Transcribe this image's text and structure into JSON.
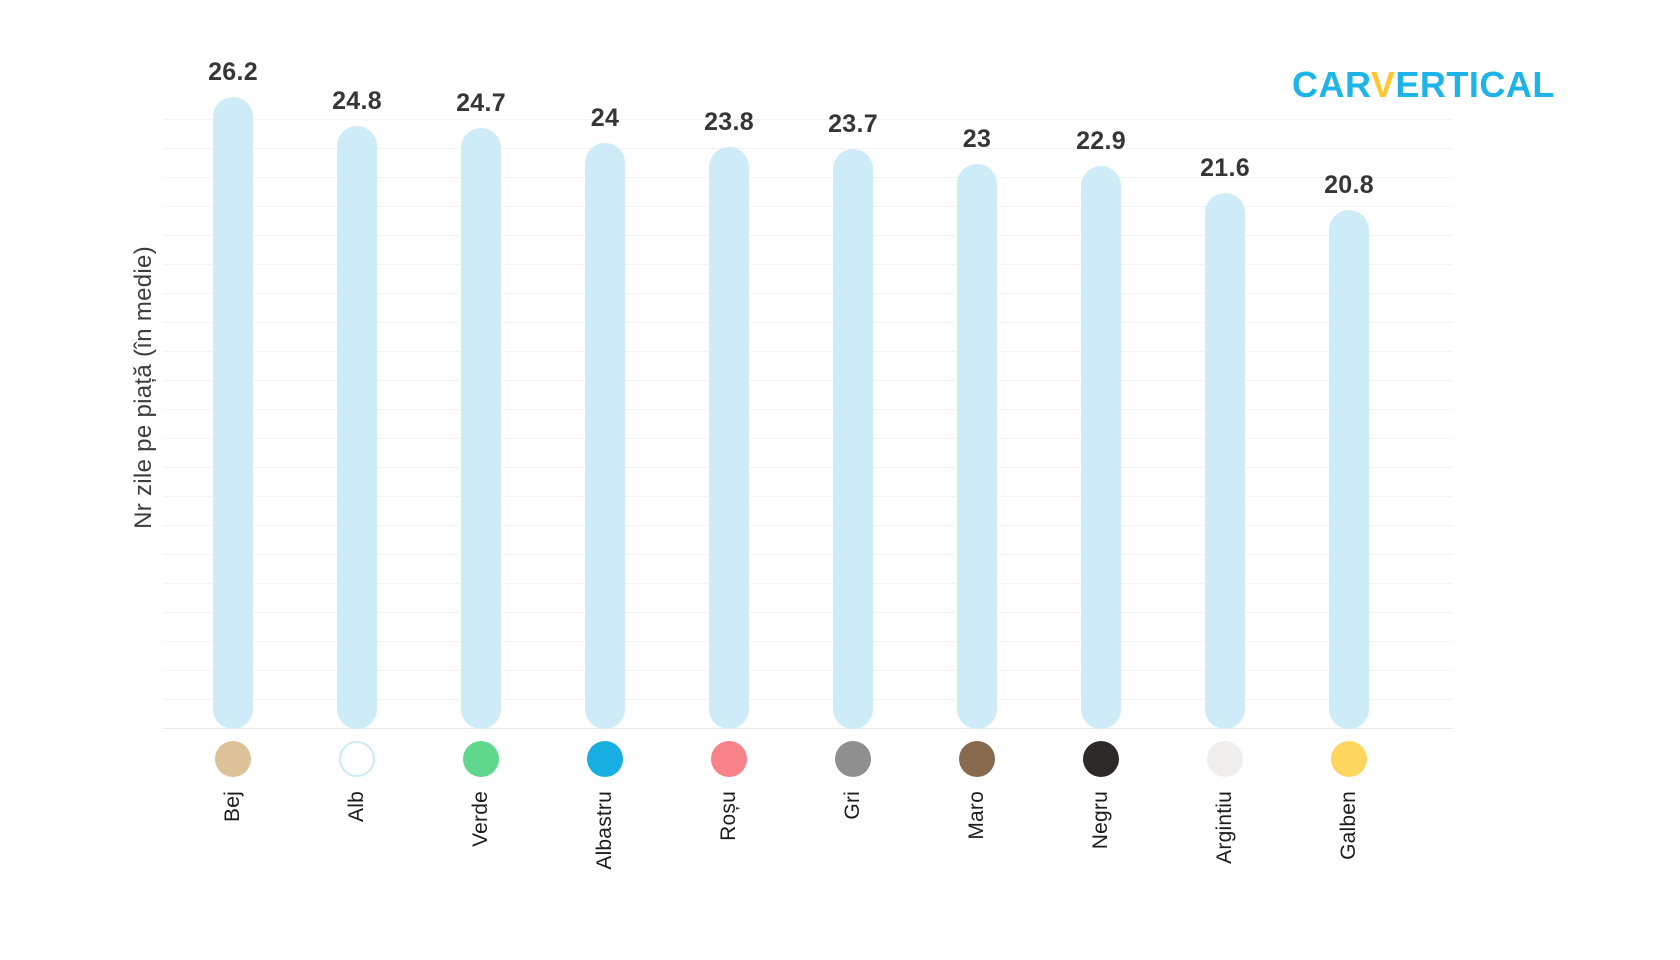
{
  "brand": {
    "part1": "CAR",
    "part2": "V",
    "part3": "ERTICAL",
    "cyan": "#1cb4e9",
    "yellow": "#ffc72e"
  },
  "chart_data": {
    "type": "bar",
    "ylabel": "Nr zile pe piață (în medie)",
    "xlabel": "",
    "categories": [
      "Bej",
      "Alb",
      "Verde",
      "Albastru",
      "Roșu",
      "Gri",
      "Maro",
      "Negru",
      "Argintiu",
      "Galben"
    ],
    "values": [
      26.2,
      24.8,
      24.7,
      24,
      23.8,
      23.7,
      23,
      22.9,
      21.6,
      20.8
    ],
    "swatch_colors": [
      "#ddc199",
      "#ffffff",
      "#5fd78c",
      "#17aee2",
      "#f9818a",
      "#8f8f8f",
      "#87694e",
      "#2c2928",
      "#f1efee",
      "#fcd65f"
    ],
    "swatch_borders": [
      "",
      "#c9ecf6",
      "",
      "",
      "",
      "",
      "",
      "",
      "",
      ""
    ],
    "bar_color": "#cdecf8",
    "value_labels": true,
    "grid": true,
    "legend": false
  }
}
